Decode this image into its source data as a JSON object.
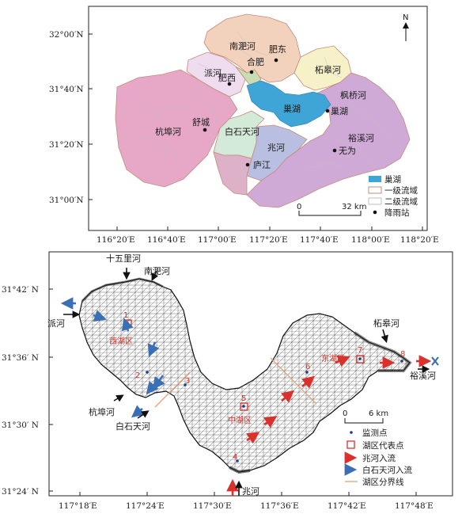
{
  "top_map": {
    "north": "N",
    "subbasins": [
      {
        "name": "南淝河",
        "color": "#f3d2bd"
      },
      {
        "name": "肥东",
        "color": "#f3d2bd"
      },
      {
        "name": "柘皋河",
        "color": "#f6f1c9"
      },
      {
        "name": "派河",
        "color": "#efdcef"
      },
      {
        "name": "杭埠河",
        "color": "#e6a8c6"
      },
      {
        "name": "白石天河",
        "color": "#d4ead8"
      },
      {
        "name": "兆河",
        "color": "#b9bfe0"
      },
      {
        "name": "裕溪河",
        "color": "#cfaad6"
      }
    ],
    "lake_name": "巢湖",
    "stations": [
      "合肥",
      "肥东",
      "肥西",
      "舒城",
      "庐江",
      "巢湖",
      "无为"
    ],
    "labels": {
      "huangqiao": "枫桥河",
      "zhaohe": "兆河",
      "yuxi": "裕溪河",
      "baishitian": "白石天河",
      "hangbu": "杭埠河",
      "pai": "派河",
      "nanfei": "南淝河",
      "zhegao": "柘皋河"
    },
    "lat_ticks": [
      "32°00′N",
      "31°40′N",
      "31°20′N",
      "31°00′N"
    ],
    "lon_ticks": [
      "116°20′E",
      "116°40′E",
      "117°00′E",
      "117°20′E",
      "117°40′E",
      "118°00′E",
      "118°20′E"
    ],
    "scale": {
      "zero": "0",
      "dist": "32 km"
    },
    "legend": [
      {
        "label": "巢湖",
        "kind": "lake"
      },
      {
        "label": "一级流域",
        "kind": "level1"
      },
      {
        "label": "二级流域",
        "kind": "level2"
      },
      {
        "label": "降雨站",
        "kind": "station"
      }
    ]
  },
  "bottom_map": {
    "rivers": {
      "shiwuli": "十五里河",
      "nanfei": "南淝河",
      "pai": "派河",
      "hangbu": "杭埠河",
      "baishitian": "白石天河",
      "zhao": "兆河",
      "zhegao": "柘皋河",
      "yuxi": "裕溪河"
    },
    "zones": {
      "west": "西湖区",
      "center": "中湖区",
      "east": "东湖区"
    },
    "points": [
      "1",
      "2",
      "3",
      "4",
      "5",
      "6",
      "7",
      "8"
    ],
    "lat_ticks": [
      "31°42′ N",
      "31°36′ N",
      "31°30′ N",
      "31°24′ N"
    ],
    "lon_ticks": [
      "117°18′E",
      "117°24′E",
      "117°30′E",
      "117°36′E",
      "117°42′E",
      "117°48′E"
    ],
    "scale": {
      "zero": "0",
      "dist": "6 km"
    },
    "legend": [
      {
        "label": "监测点",
        "kind": "point"
      },
      {
        "label": "湖区代表点",
        "kind": "rep"
      },
      {
        "label": "兆河入流",
        "kind": "red-arrow",
        "color": "#d9312b"
      },
      {
        "label": "白石天河入流",
        "kind": "blue-arrow",
        "color": "#3a6fb5"
      },
      {
        "label": "湖区分界线",
        "kind": "line",
        "color": "#e8a074"
      }
    ]
  }
}
